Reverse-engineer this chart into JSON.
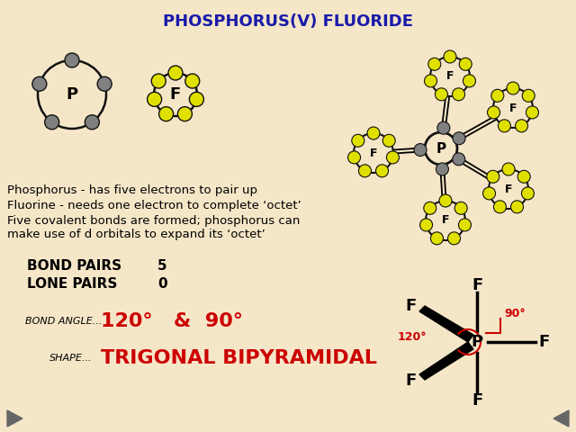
{
  "title": "PHOSPHORUS(V) FLUORIDE",
  "title_color": "#1a1aaa",
  "bg_color": "#f5e6c8",
  "bond_pairs_label": "BOND PAIRS",
  "bond_pairs_value": "5",
  "lone_pairs_label": "LONE PAIRS",
  "lone_pairs_value": "0",
  "bond_angle_label": "BOND ANGLE...",
  "bond_angle_value": "120°   &  90°",
  "shape_label": "SHAPE...",
  "shape_value": "TRIGONAL BIPYRAMIDAL",
  "atom_P_color": "#808080",
  "atom_F_color": "#e0e000",
  "atom_outline": "#111111",
  "red_color": "#cc0000",
  "nav_arrow_color": "#666666",
  "text1": "Phosphorus - has five electrons to pair up",
  "text2": "Fluorine - needs one electron to complete ‘octet’",
  "text3a": "Five covalent bonds are formed; phosphorus can",
  "text3b": "make use of d orbitals to expand its ‘octet’",
  "p_ring_r": 38,
  "p_elec_r": 8,
  "p_n_elec": 5,
  "f_ring_r": 24,
  "f_elec_r": 8,
  "f_n_elec": 7,
  "pf5_p_ring_r": 18,
  "pf5_f_ring_r": 22,
  "pf5_f_elec_r": 7,
  "pf5_f_n_elec": 7,
  "pf5_p_elec_r": 7
}
